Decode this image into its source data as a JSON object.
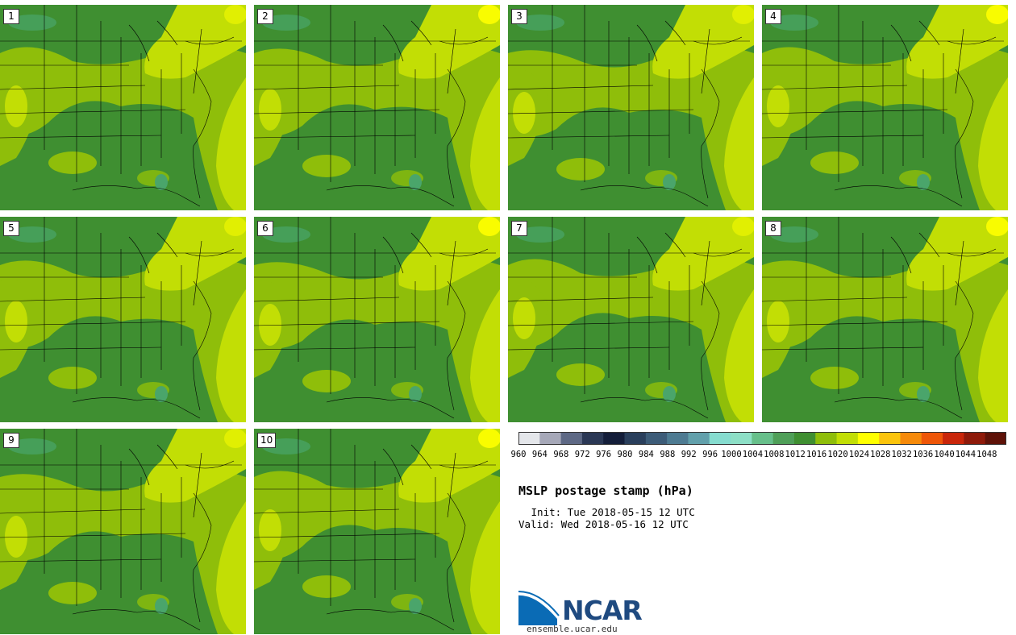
{
  "map": {
    "title": "MSLP postage stamp (hPa)",
    "init": " Init: Tue 2018-05-15 12 UTC",
    "valid": "Valid: Wed 2018-05-16 12 UTC",
    "logo_text": "NCAR",
    "logo_url": "ensemble.ucar.edu",
    "members": [
      "1",
      "2",
      "3",
      "4",
      "5",
      "6",
      "7",
      "8",
      "9",
      "10"
    ],
    "colorbar": {
      "unit": "hPa",
      "ticks": [
        "960",
        "964",
        "968",
        "972",
        "976",
        "980",
        "984",
        "988",
        "992",
        "996",
        "1000",
        "1004",
        "1008",
        "1012",
        "1016",
        "1020",
        "1024",
        "1028",
        "1032",
        "1036",
        "1040",
        "1044",
        "1048"
      ],
      "colors": [
        "#e4e6ea",
        "#a6a8b8",
        "#5e6985",
        "#2b3855",
        "#141e3a",
        "#2a3f5c",
        "#3d5c78",
        "#4e7b92",
        "#62a0ab",
        "#86dccf",
        "#8ddfc6",
        "#67bf8a",
        "#4f9f58",
        "#3f8f31",
        "#8fbe0a",
        "#c2de05",
        "#ffff00",
        "#fbc40c",
        "#f68a0a",
        "#ee5608",
        "#c9260a",
        "#8e1a0a",
        "#5e1208"
      ]
    },
    "field_colors": {
      "low": "#3f8f31",
      "mid": "#8fbe0a",
      "high": "#c2de05",
      "peak": "#ffff00",
      "border": "#000000"
    }
  }
}
